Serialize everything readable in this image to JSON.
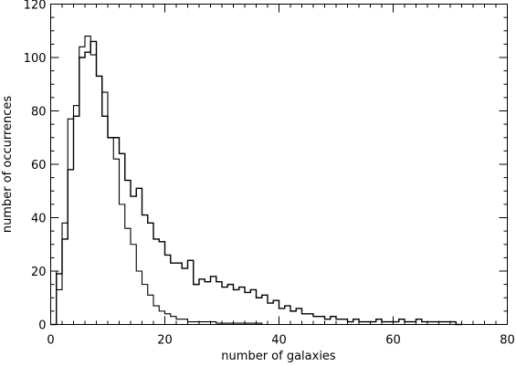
{
  "chart_data": {
    "type": "line",
    "title": "",
    "xlabel": "number of galaxies",
    "ylabel": "number of occurrences",
    "xlim": [
      0,
      80
    ],
    "ylim": [
      0,
      120
    ],
    "xticks": [
      0,
      20,
      40,
      60,
      80
    ],
    "yticks": [
      0,
      20,
      40,
      60,
      80,
      100,
      120
    ],
    "xtick_labels": [
      "0",
      "20",
      "40",
      "60",
      "80"
    ],
    "ytick_labels": [
      "0",
      "20",
      "40",
      "60",
      "80",
      "100",
      "120"
    ],
    "grid": false,
    "step": "histogram",
    "series": [
      {
        "x": [
          0,
          1,
          2,
          3,
          4,
          5,
          6,
          7,
          8,
          9,
          10,
          11,
          12,
          13,
          14,
          15,
          16,
          17,
          18,
          19,
          20,
          21,
          22,
          23,
          24,
          25,
          26,
          27,
          28,
          29,
          30,
          31,
          32,
          33,
          34,
          35,
          36,
          37,
          38,
          39,
          40,
          41,
          42,
          43,
          44,
          45,
          46,
          47,
          48,
          49,
          50,
          51,
          52,
          53,
          54,
          55,
          56,
          57,
          58,
          59,
          60,
          61,
          62,
          63,
          64,
          65,
          66,
          67,
          68,
          69,
          70,
          71
        ],
        "values": [
          0,
          19,
          32,
          58,
          78,
          100,
          102,
          106,
          93,
          78,
          70,
          70,
          64,
          54,
          48,
          51,
          41,
          38,
          32,
          31,
          26,
          23,
          23,
          21,
          24,
          15,
          17,
          16,
          18,
          16,
          14,
          15,
          13,
          14,
          12,
          13,
          10,
          11,
          8,
          9,
          6,
          7,
          5,
          6,
          4,
          4,
          3,
          3,
          2,
          3,
          2,
          2,
          1,
          2,
          1,
          1,
          1,
          2,
          1,
          1,
          1,
          2,
          1,
          1,
          2,
          1,
          1,
          1,
          1,
          1,
          1,
          0
        ]
      },
      {
        "x": [
          0,
          1,
          2,
          3,
          4,
          5,
          6,
          7,
          8,
          9,
          10,
          11,
          12,
          13,
          14,
          15,
          16,
          17,
          18,
          19,
          20,
          21,
          22,
          23,
          24,
          25,
          26,
          27,
          28,
          29,
          30,
          31,
          32,
          33,
          34,
          35,
          36,
          37
        ],
        "values": [
          20,
          13,
          38,
          77,
          82,
          104,
          108,
          101,
          93,
          87,
          70,
          62,
          45,
          36,
          30,
          20,
          15,
          11,
          7,
          5,
          4,
          3,
          2,
          2,
          1,
          1,
          1,
          1,
          1,
          0.5,
          0.5,
          0.5,
          0.5,
          0.5,
          0.5,
          0.5,
          0.5,
          0
        ]
      }
    ]
  }
}
